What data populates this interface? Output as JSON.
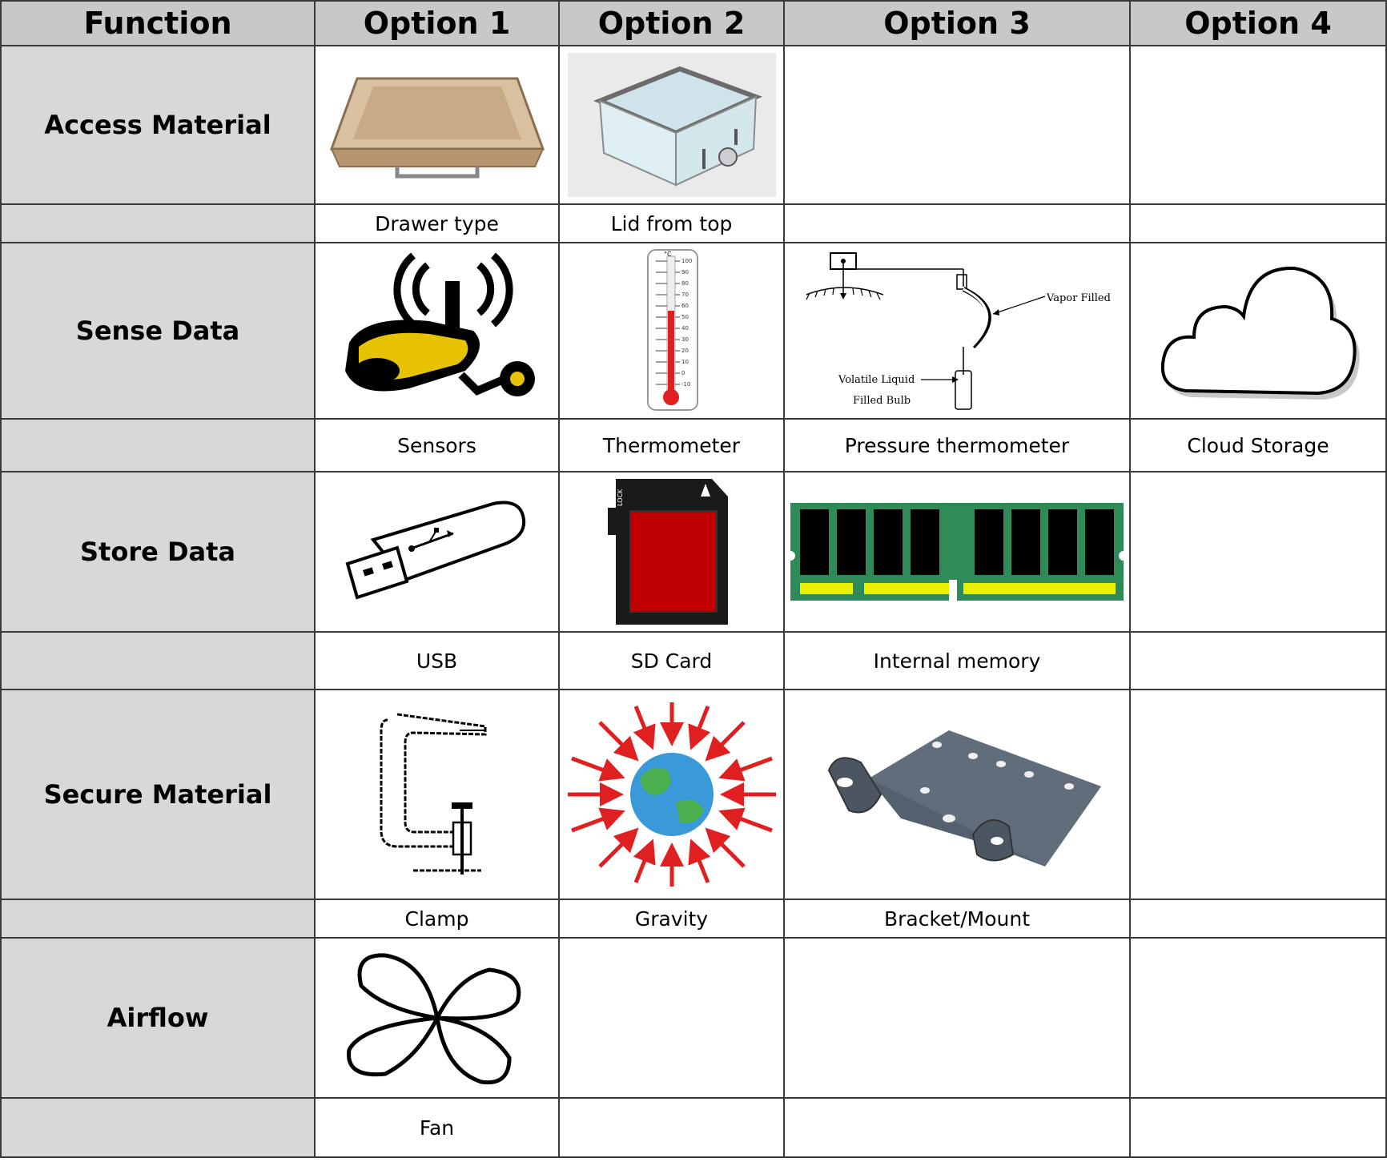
{
  "headers": [
    "Function",
    "Option 1",
    "Option 2",
    "Option 3",
    "Option 4"
  ],
  "rows": [
    {
      "function": "Access Material",
      "captions": [
        "Drawer type",
        "Lid from top",
        "",
        ""
      ],
      "icons": [
        "drawer-tray-icon",
        "acrylic-chamber-lid-icon",
        "",
        ""
      ]
    },
    {
      "function": "Sense Data",
      "captions": [
        "Sensors",
        "Thermometer",
        "Pressure thermometer",
        "Cloud Storage"
      ],
      "icons": [
        "sensor-icon",
        "thermometer-icon",
        "pressure-thermometer-diagram",
        "cloud-icon"
      ]
    },
    {
      "function": "Store Data",
      "captions": [
        "USB",
        "SD Card",
        "Internal memory",
        ""
      ],
      "icons": [
        "usb-drive-icon",
        "sd-card-icon",
        "ram-module-icon",
        ""
      ]
    },
    {
      "function": "Secure Material",
      "captions": [
        "Clamp",
        "Gravity",
        "Bracket/Mount",
        ""
      ],
      "icons": [
        "c-clamp-icon",
        "gravity-earth-icon",
        "mounting-bracket-icon",
        ""
      ]
    },
    {
      "function": "Airflow",
      "captions": [
        "Fan",
        "",
        "",
        ""
      ],
      "icons": [
        "fan-icon",
        "",
        "",
        ""
      ]
    }
  ],
  "thermometer": {
    "unit": "°C",
    "ticks": [
      "100",
      "90",
      "80",
      "70",
      "60",
      "50",
      "40",
      "30",
      "20",
      "10",
      "0",
      "-10"
    ]
  },
  "pressure_diagram": {
    "label_vapor": "Vapor Filled",
    "label_liquid": "Volatile Liquid",
    "label_bulb": "Filled Bulb"
  },
  "sd_card": {
    "lock_label": "LOCK"
  },
  "colors": {
    "header_bg": "#c8c8c8",
    "function_bg": "#d8d8d8",
    "border": "#3a3a3a",
    "ram_green": "#2e8b57",
    "sd_red": "#c00000",
    "sensor_yellow": "#d4b400"
  }
}
